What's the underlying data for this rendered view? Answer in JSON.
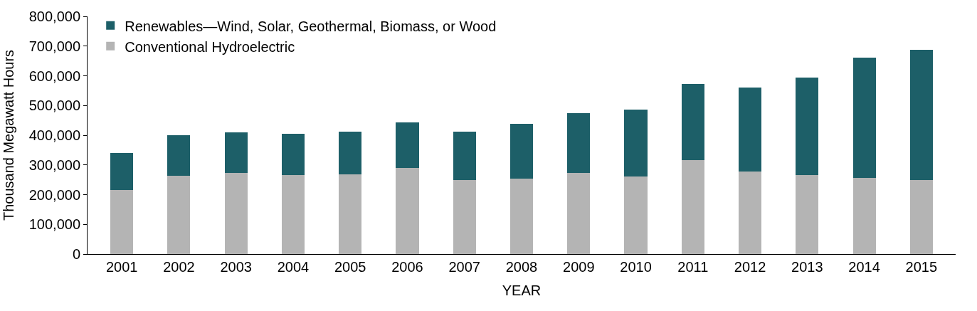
{
  "chart_data": {
    "type": "bar",
    "stacked": true,
    "xlabel": "YEAR",
    "ylabel": "Thousand Megawatt Hours",
    "categories": [
      "2001",
      "2002",
      "2003",
      "2004",
      "2005",
      "2006",
      "2007",
      "2008",
      "2009",
      "2010",
      "2011",
      "2012",
      "2013",
      "2014",
      "2015"
    ],
    "series": [
      {
        "name": "Conventional Hydroelectric",
        "color": "#b4b4b4",
        "values": [
          216000,
          264000,
          274000,
          267000,
          269000,
          291000,
          248000,
          255000,
          272000,
          260000,
          317000,
          279000,
          267000,
          257000,
          248000
        ]
      },
      {
        "name": "Renewables—Wind, Solar, Geothermal, Biomass, or Wood",
        "color": "#1d5f68",
        "values": [
          123000,
          135000,
          135000,
          139000,
          144000,
          151000,
          163000,
          183000,
          202000,
          226000,
          255000,
          281000,
          327000,
          404000,
          440000
        ]
      }
    ],
    "ylim": [
      0,
      800000
    ],
    "yticks": [
      {
        "value": 0,
        "label": "0"
      },
      {
        "value": 100000,
        "label": "100,000"
      },
      {
        "value": 200000,
        "label": "200,000"
      },
      {
        "value": 300000,
        "label": "300,000"
      },
      {
        "value": 400000,
        "label": "400,000"
      },
      {
        "value": 500000,
        "label": "500,000"
      },
      {
        "value": 600000,
        "label": "600,000"
      },
      {
        "value": 700000,
        "label": "700,000"
      },
      {
        "value": 800000,
        "label": "800,000"
      }
    ],
    "legend": "top left"
  }
}
